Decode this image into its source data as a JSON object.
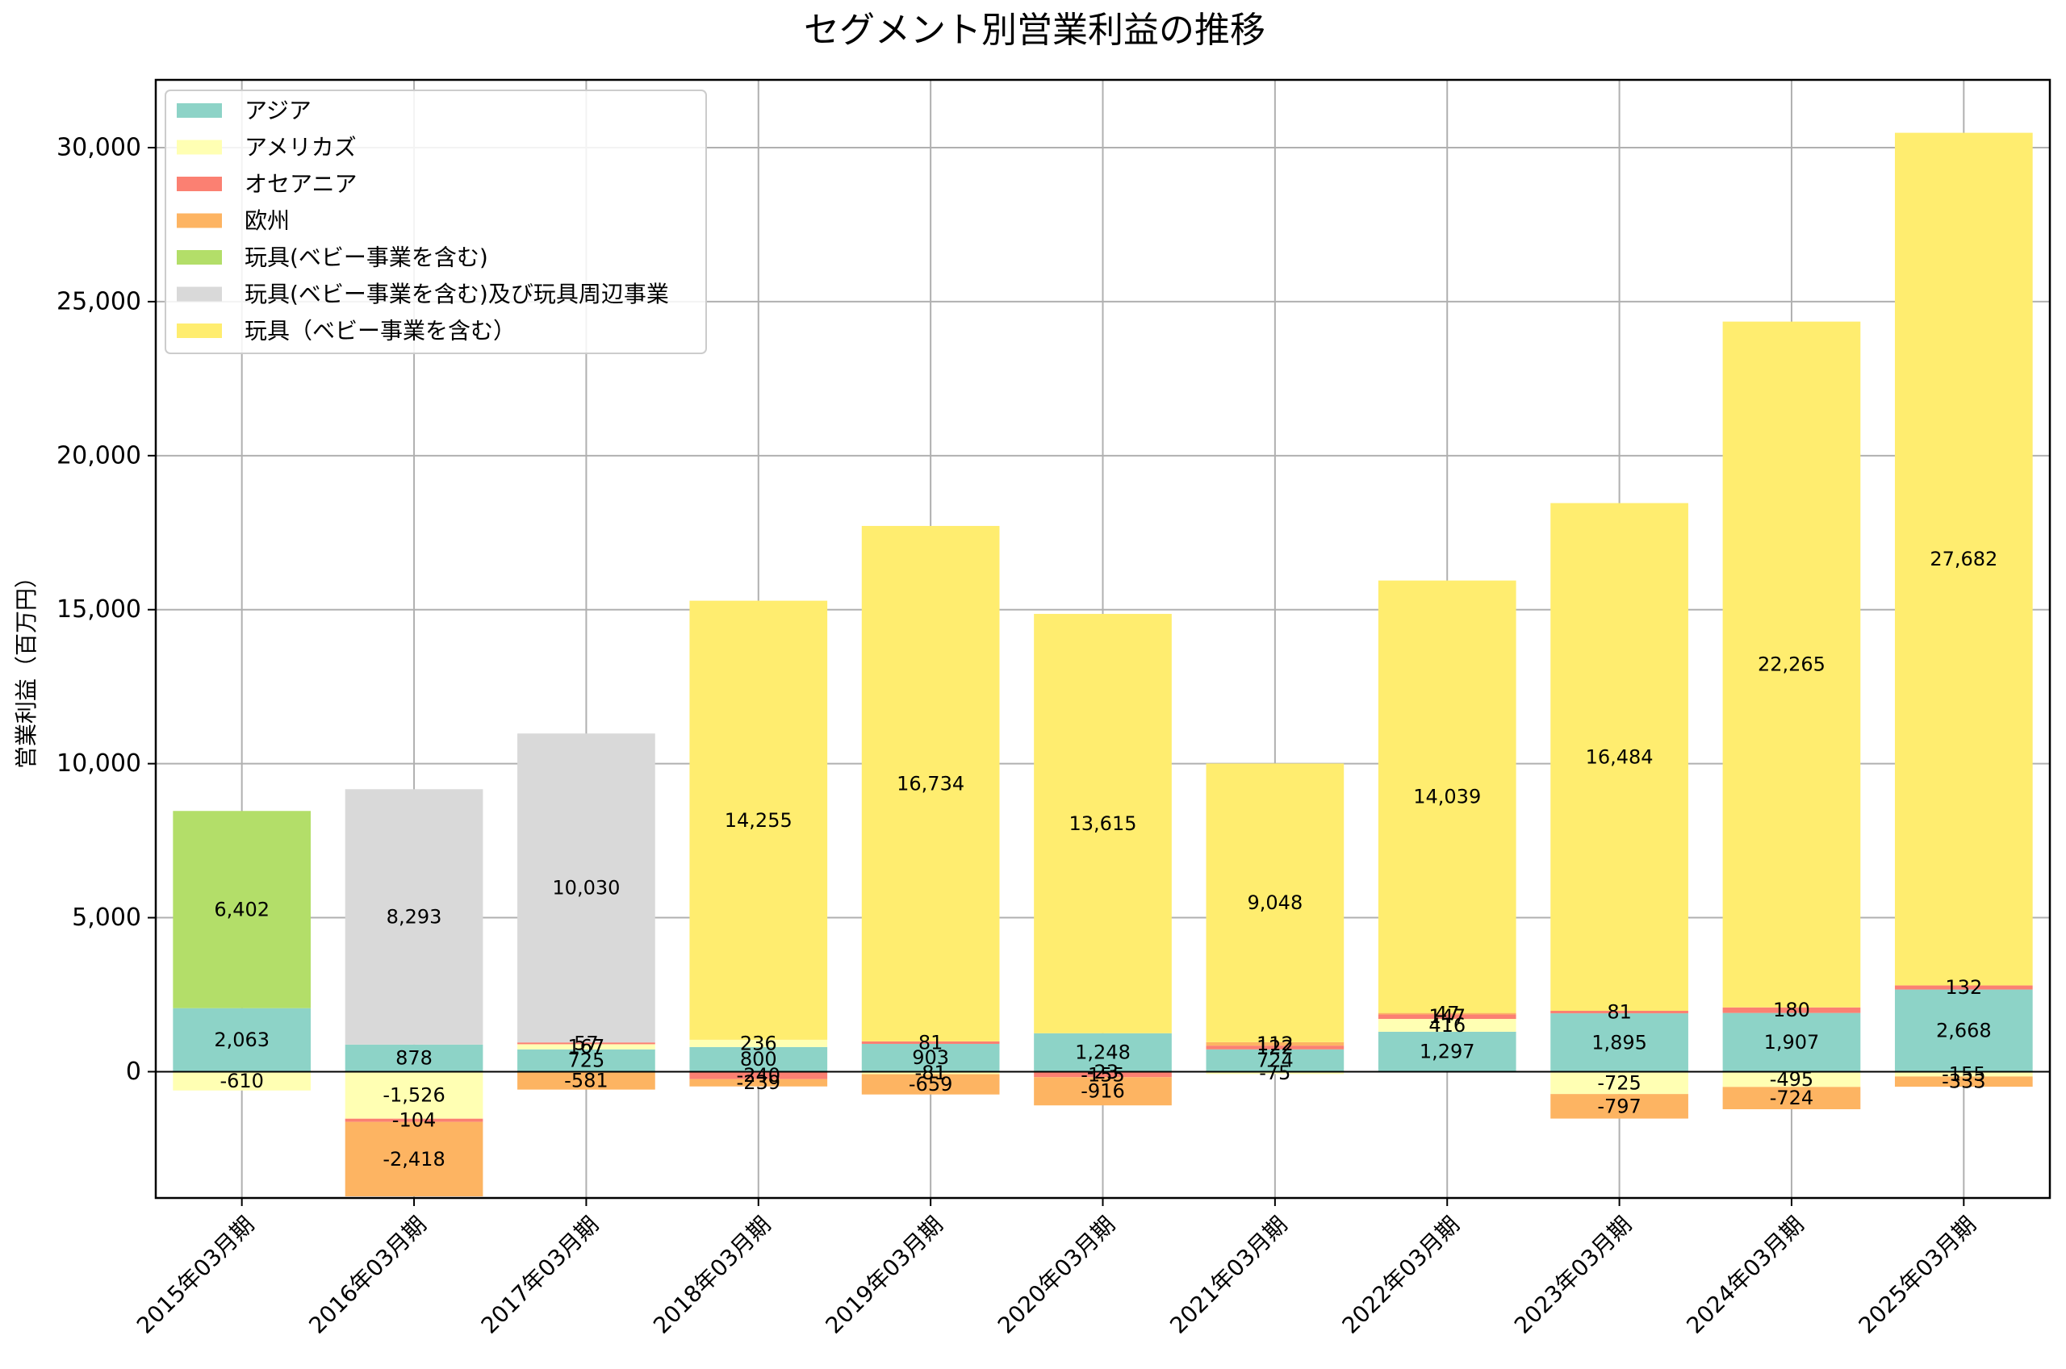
{
  "chart_data": {
    "type": "bar",
    "stacked": true,
    "title": "セグメント別営業利益の推移",
    "xlabel": "",
    "ylabel": "営業利益（百万円）",
    "ylim": [
      -4100,
      32200
    ],
    "yticks": [
      0,
      5000,
      10000,
      15000,
      20000,
      25000,
      30000
    ],
    "ytick_labels": [
      "0",
      "5,000",
      "10,000",
      "15,000",
      "20,000",
      "25,000",
      "30,000"
    ],
    "grid": true,
    "legend_position": "top-left",
    "categories": [
      "2015年03月期",
      "2016年03月期",
      "2017年03月期",
      "2018年03月期",
      "2019年03月期",
      "2020年03月期",
      "2021年03月期",
      "2022年03月期",
      "2023年03月期",
      "2024年03月期",
      "2025年03月期"
    ],
    "series": [
      {
        "name": "アジア",
        "color": "#8dd3c7",
        "values": [
          2063,
          878,
          725,
          800,
          903,
          1248,
          724,
          1297,
          1895,
          1907,
          2668
        ]
      },
      {
        "name": "アメリカズ",
        "color": "#ffffb3",
        "values": [
          -610,
          -1526,
          167,
          236,
          -81,
          -23,
          -75,
          416,
          -725,
          -495,
          -155
        ]
      },
      {
        "name": "オセアニア",
        "color": "#fb8072",
        "values": [
          null,
          -104,
          57,
          -240,
          81,
          -155,
          122,
          147,
          81,
          180,
          132
        ]
      },
      {
        "name": "欧州",
        "color": "#fdb462",
        "values": [
          null,
          -2418,
          -581,
          -239,
          -659,
          -916,
          112,
          47,
          -797,
          -724,
          -333
        ]
      },
      {
        "name": "玩具(ベビー事業を含む)",
        "color": "#b3de69",
        "values": [
          6402,
          null,
          null,
          null,
          null,
          null,
          null,
          null,
          null,
          null,
          null
        ]
      },
      {
        "name": "玩具(ベビー事業を含む)及び玩具周辺事業",
        "color": "#d9d9d9",
        "values": [
          null,
          8293,
          10030,
          null,
          null,
          null,
          null,
          null,
          null,
          null,
          null
        ]
      },
      {
        "name": "玩具（ベビー事業を含む）",
        "color": "#ffed6f",
        "values": [
          null,
          null,
          null,
          14255,
          16734,
          13615,
          9048,
          14039,
          16484,
          22265,
          27682
        ]
      }
    ]
  }
}
